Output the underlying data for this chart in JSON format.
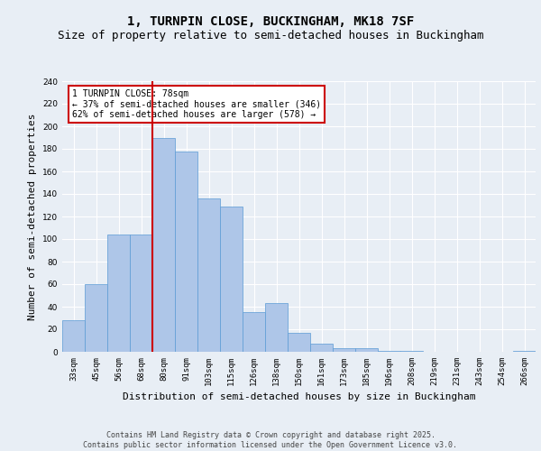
{
  "title": "1, TURNPIN CLOSE, BUCKINGHAM, MK18 7SF",
  "subtitle": "Size of property relative to semi-detached houses in Buckingham",
  "xlabel": "Distribution of semi-detached houses by size in Buckingham",
  "ylabel": "Number of semi-detached properties",
  "categories": [
    "33sqm",
    "45sqm",
    "56sqm",
    "68sqm",
    "80sqm",
    "91sqm",
    "103sqm",
    "115sqm",
    "126sqm",
    "138sqm",
    "150sqm",
    "161sqm",
    "173sqm",
    "185sqm",
    "196sqm",
    "208sqm",
    "219sqm",
    "231sqm",
    "243sqm",
    "254sqm",
    "266sqm"
  ],
  "values": [
    28,
    60,
    104,
    104,
    190,
    178,
    136,
    129,
    35,
    43,
    17,
    7,
    3,
    3,
    1,
    1,
    0,
    0,
    0,
    0,
    1
  ],
  "bar_color": "#aec6e8",
  "bar_edge_color": "#5b9bd5",
  "annotation_text_line1": "1 TURNPIN CLOSE: 78sqm",
  "annotation_text_line2": "← 37% of semi-detached houses are smaller (346)",
  "annotation_text_line3": "62% of semi-detached houses are larger (578) →",
  "vline_color": "#cc0000",
  "box_edge_color": "#cc0000",
  "ylim": [
    0,
    240
  ],
  "yticks": [
    0,
    20,
    40,
    60,
    80,
    100,
    120,
    140,
    160,
    180,
    200,
    220,
    240
  ],
  "footer": "Contains HM Land Registry data © Crown copyright and database right 2025.\nContains public sector information licensed under the Open Government Licence v3.0.",
  "bg_color": "#e8eef5",
  "grid_color": "#ffffff",
  "title_fontsize": 10,
  "subtitle_fontsize": 9,
  "axis_label_fontsize": 8,
  "tick_fontsize": 6.5,
  "annot_fontsize": 7,
  "footer_fontsize": 6
}
